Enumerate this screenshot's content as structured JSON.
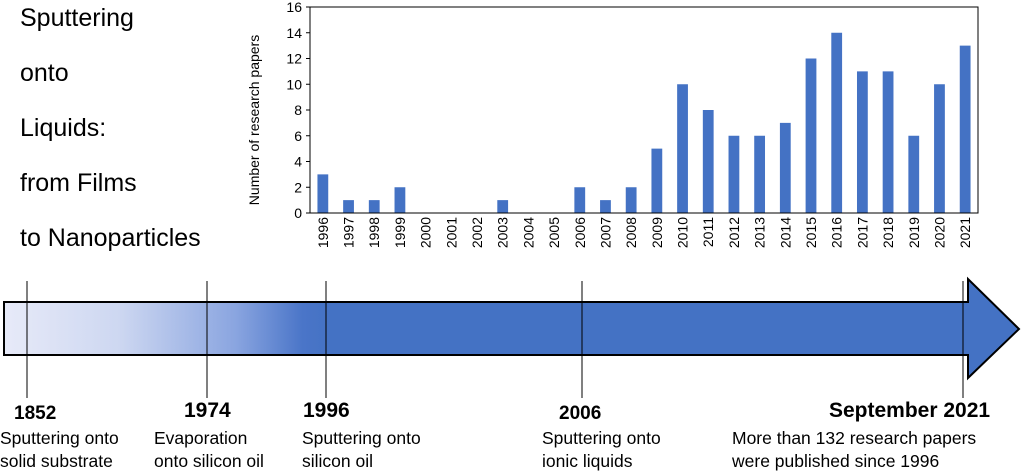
{
  "title_lines": [
    "Sputtering",
    "onto",
    "Liquids:",
    "from Films",
    "to Nanoparticles"
  ],
  "chart_data": {
    "type": "bar",
    "title": "",
    "xlabel": "",
    "ylabel": "Number of research papers",
    "categories": [
      "1996",
      "1997",
      "1998",
      "1999",
      "2000",
      "2001",
      "2002",
      "2003",
      "2004",
      "2005",
      "2006",
      "2007",
      "2008",
      "2009",
      "2010",
      "2011",
      "2012",
      "2013",
      "2014",
      "2015",
      "2016",
      "2017",
      "2018",
      "2019",
      "2020",
      "2021"
    ],
    "values": [
      3,
      1,
      1,
      2,
      0,
      0,
      0,
      1,
      0,
      0,
      2,
      1,
      2,
      5,
      10,
      8,
      6,
      6,
      7,
      12,
      14,
      11,
      11,
      6,
      10,
      13
    ],
    "ylim": [
      0,
      16
    ],
    "yticks": [
      0,
      2,
      4,
      6,
      8,
      10,
      12,
      14,
      16
    ],
    "bar_color": "#4472C4",
    "grid": false
  },
  "timeline": {
    "arrow_color": "#4472C4",
    "milestones": [
      {
        "year": "1852",
        "line1": "Sputtering onto",
        "line2": "solid substrate"
      },
      {
        "year": "1974",
        "line1": "Evaporation",
        "line2": "onto silicon oil"
      },
      {
        "year": "1996",
        "line1": "Sputtering onto",
        "line2": "silicon oil"
      },
      {
        "year": "2006",
        "line1": "Sputtering onto",
        "line2": "ionic liquids"
      },
      {
        "year": "September 2021",
        "line1": "More than 132 research papers",
        "line2": "were published since 1996"
      }
    ]
  }
}
